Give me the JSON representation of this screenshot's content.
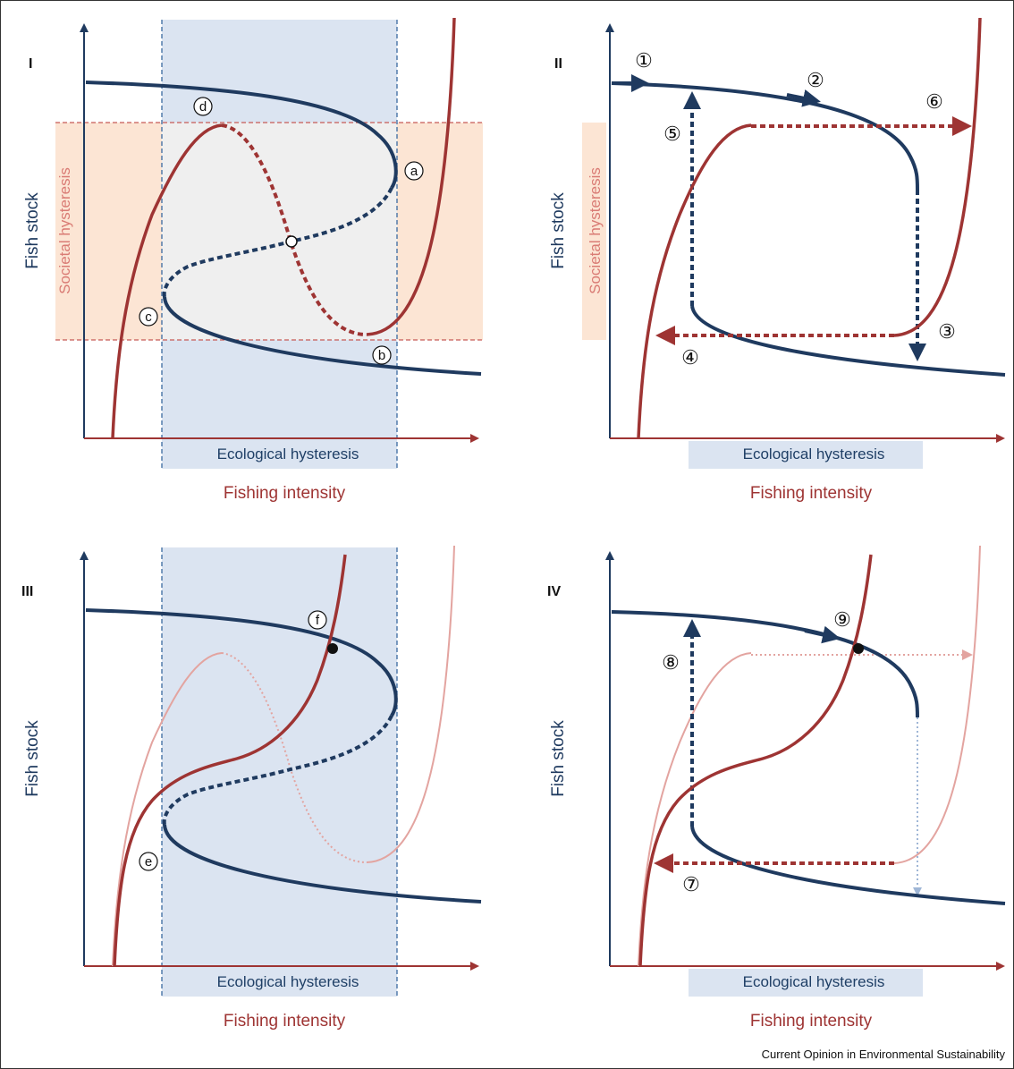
{
  "colors": {
    "stock": "#1f3a5f",
    "fishing": "#9e3433",
    "fishing_faint": "#e3a4a0",
    "stock_faint": "#9fb6d6",
    "eco_band": "#dbe4f1",
    "soc_band": "#fce5d4",
    "overlap": "#efefef"
  },
  "panels": [
    {
      "label": "I",
      "y_label": "Fish stock",
      "x_label": "Fishing intensity",
      "band_x_label": "Ecological hysteresis",
      "band_y_label": "Societal hysteresis",
      "markers": [
        "a",
        "b",
        "c",
        "d"
      ]
    },
    {
      "label": "II",
      "y_label": "Fish stock",
      "x_label": "Fishing intensity",
      "band_x_label": "Ecological hysteresis",
      "band_y_label": "Societal hysteresis",
      "markers": [
        "①",
        "②",
        "③",
        "④",
        "⑤",
        "⑥"
      ]
    },
    {
      "label": "III",
      "y_label": "Fish stock",
      "x_label": "Fishing intensity",
      "band_x_label": "Ecological hysteresis",
      "markers": [
        "e",
        "f"
      ]
    },
    {
      "label": "IV",
      "y_label": "Fish stock",
      "x_label": "Fishing intensity",
      "band_x_label": "Ecological hysteresis",
      "markers": [
        "⑦",
        "⑧",
        "⑨"
      ]
    }
  ],
  "credit": "Current Opinion in Environmental Sustainability"
}
